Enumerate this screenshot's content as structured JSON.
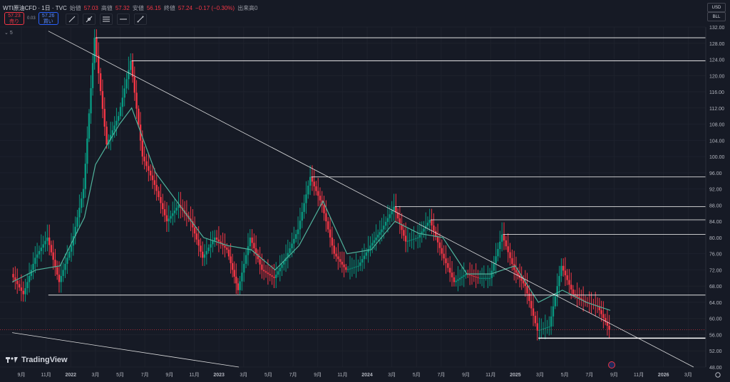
{
  "header": {
    "symbol": "WTI原油CFD · 1日 · TVC",
    "open_label": "始値",
    "open": "57.03",
    "high_label": "高値",
    "high": "57.32",
    "low_label": "安値",
    "low": "56.15",
    "close_label": "終値",
    "close": "57.24",
    "change": "−0.17 (−0.30%)",
    "volume_label": "出来高0",
    "sell_price": "57.23",
    "sell_label": "売り",
    "spread": "0.03",
    "buy_price": "57.26",
    "buy_label": "買い",
    "indicator_count": "5"
  },
  "currency": "USD",
  "unit": "BLL",
  "brand": "TradingView",
  "icons": [
    "pencil-tool-icon",
    "ruler-tool-icon",
    "fib-tool-icon",
    "horizontal-line-icon",
    "trendline-icon"
  ],
  "colors": {
    "up": "#089981",
    "down": "#f23645",
    "ma": "#4fb39c",
    "drawing": "#ffffff",
    "background": "#161a25"
  },
  "chart_data": {
    "type": "line",
    "ylim": [
      48,
      132
    ],
    "y_ticks": [
      "132.00",
      "128.00",
      "124.00",
      "120.00",
      "116.00",
      "112.00",
      "108.00",
      "104.00",
      "100.00",
      "96.00",
      "92.00",
      "88.00",
      "84.00",
      "80.00",
      "76.00",
      "72.00",
      "68.00",
      "64.00",
      "60.00",
      "56.00",
      "52.00",
      "48.00"
    ],
    "x_ticks": [
      "9月",
      "11月",
      "2022",
      "3月",
      "5月",
      "7月",
      "9月",
      "11月",
      "2023",
      "3月",
      "5月",
      "7月",
      "9月",
      "11月",
      "2024",
      "3月",
      "5月",
      "7月",
      "9月",
      "11月",
      "2025",
      "3月",
      "5月",
      "7月",
      "9月",
      "11月",
      "2026",
      "3月",
      "5月"
    ],
    "price_series": {
      "x": [
        "2021-08",
        "2021-09",
        "2021-10",
        "2021-11",
        "2021-12",
        "2022-01",
        "2022-02",
        "2022-03",
        "2022-04",
        "2022-05",
        "2022-06",
        "2022-07",
        "2022-08",
        "2022-09",
        "2022-10",
        "2022-11",
        "2022-12",
        "2023-01",
        "2023-02",
        "2023-03",
        "2023-04",
        "2023-05",
        "2023-06",
        "2023-07",
        "2023-08",
        "2023-09",
        "2023-10",
        "2023-11",
        "2023-12",
        "2024-01",
        "2024-02",
        "2024-03",
        "2024-04",
        "2024-05",
        "2024-06",
        "2024-07",
        "2024-08",
        "2024-09",
        "2024-10",
        "2024-11",
        "2024-12",
        "2025-01",
        "2025-02",
        "2025-03",
        "2025-04",
        "2025-05",
        "2025-06",
        "2025-07",
        "2025-08",
        "2025-09",
        "2025-10"
      ],
      "values": [
        71,
        66,
        75,
        80,
        69,
        78,
        92,
        129.35,
        103,
        110,
        123.66,
        100,
        93,
        84,
        88,
        84,
        75,
        80,
        77,
        67,
        80,
        72,
        70,
        75,
        82,
        94.97,
        88,
        76,
        72,
        73,
        78,
        82,
        87.61,
        79,
        80,
        84.38,
        76,
        69,
        71,
        70,
        70,
        80.75,
        72,
        68,
        57,
        58,
        73,
        66,
        64,
        63,
        57.24
      ]
    },
    "ma_series": {
      "x": [
        "2021-08",
        "2021-10",
        "2021-12",
        "2022-02",
        "2022-03",
        "2022-05",
        "2022-06",
        "2022-08",
        "2022-10",
        "2022-12",
        "2023-02",
        "2023-04",
        "2023-06",
        "2023-08",
        "2023-10",
        "2023-12",
        "2024-02",
        "2024-04",
        "2024-06",
        "2024-08",
        "2024-10",
        "2024-12",
        "2025-02",
        "2025-04",
        "2025-06",
        "2025-08",
        "2025-10"
      ],
      "values": [
        69,
        72,
        73,
        85,
        98,
        108,
        112,
        96,
        88,
        80,
        78,
        77,
        72,
        78,
        89,
        76,
        77,
        84,
        81,
        80,
        71,
        71,
        73,
        64,
        67,
        64,
        62
      ]
    },
    "horizontal_levels": [
      {
        "label": "129.35",
        "value": 129.35,
        "from": "2022-03"
      },
      {
        "label": "123.66",
        "value": 123.66,
        "from": "2022-06"
      },
      {
        "label": "94.97",
        "value": 94.97,
        "from": "2023-09"
      },
      {
        "label": "87.61",
        "value": 87.61,
        "from": "2024-04"
      },
      {
        "label": "84.38",
        "value": 84.38,
        "from": "2024-07"
      },
      {
        "label": "80.75",
        "value": 80.75,
        "from": "2025-01"
      },
      {
        "label": "65.78",
        "value": 65.78,
        "from": "2021-11"
      },
      {
        "label": "55.14",
        "value": 55.14,
        "from": "2025-04"
      }
    ],
    "current_price": {
      "label": "57.24",
      "value": 57.24
    },
    "trendlines": [
      {
        "from": {
          "x": "2021-11",
          "y": 131
        },
        "to": {
          "x": "2026-05",
          "y": 48
        }
      },
      {
        "from": {
          "x": "2021-08",
          "y": 56.5
        },
        "to": {
          "x": "2023-03",
          "y": 48
        }
      }
    ]
  }
}
